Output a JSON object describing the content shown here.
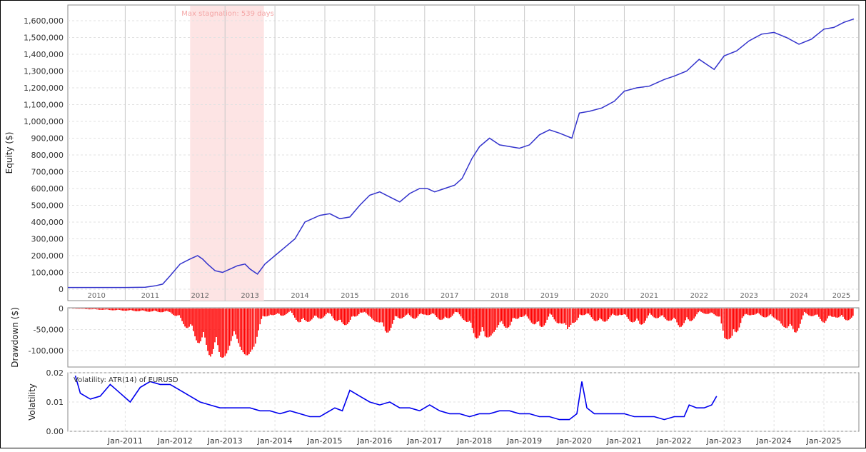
{
  "chart_data": [
    {
      "type": "line",
      "ylabel": "Equity ($)",
      "ylim": [
        0,
        1650000
      ],
      "yticks": [
        0,
        100000,
        200000,
        300000,
        400000,
        500000,
        600000,
        700000,
        800000,
        900000,
        1000000,
        1100000,
        1200000,
        1300000,
        1400000,
        1500000,
        1600000
      ],
      "ytick_labels": [
        "0",
        "100,000",
        "200,000",
        "300,000",
        "400,000",
        "500,000",
        "600,000",
        "700,000",
        "800,000",
        "900,000",
        "1,000,000",
        "1,100,000",
        "1,200,000",
        "1,300,000",
        "1,400,000",
        "1,500,000",
        "1,600,000"
      ],
      "year_labels": [
        "2010",
        "2011",
        "2012",
        "2013",
        "2014",
        "2015",
        "2016",
        "2017",
        "2018",
        "2019",
        "2020",
        "2021",
        "2022",
        "2023",
        "2024",
        "2025"
      ],
      "grid": true,
      "color": "#3333cc",
      "annotation": {
        "text": "Max stagnation: 539 days",
        "start": 2012.3,
        "end": 2013.78,
        "color": "#fde4e4"
      },
      "series": [
        {
          "x": [
            2009.85,
            2010.5,
            2011.0,
            2011.4,
            2011.6,
            2011.75,
            2011.9,
            2012.1,
            2012.3,
            2012.45,
            2012.55,
            2012.65,
            2012.8,
            2012.95,
            2013.1,
            2013.25,
            2013.4,
            2013.5,
            2013.65,
            2013.8,
            2014.0,
            2014.2,
            2014.4,
            2014.6,
            2014.9,
            2015.1,
            2015.3,
            2015.5,
            2015.7,
            2015.9,
            2016.1,
            2016.3,
            2016.5,
            2016.7,
            2016.9,
            2017.05,
            2017.2,
            2017.4,
            2017.6,
            2017.75,
            2017.95,
            2018.1,
            2018.3,
            2018.5,
            2018.7,
            2018.9,
            2019.1,
            2019.3,
            2019.5,
            2019.7,
            2019.95,
            2020.1,
            2020.3,
            2020.55,
            2020.8,
            2021.0,
            2021.25,
            2021.5,
            2021.8,
            2022.0,
            2022.25,
            2022.5,
            2022.8,
            2023.0,
            2023.25,
            2023.5,
            2023.75,
            2024.0,
            2024.25,
            2024.5,
            2024.75,
            2025.0,
            2025.2,
            2025.4,
            2025.6
          ],
          "y": [
            10000,
            10000,
            10000,
            12000,
            20000,
            30000,
            80000,
            150000,
            180000,
            200000,
            180000,
            150000,
            110000,
            100000,
            120000,
            140000,
            150000,
            120000,
            90000,
            150000,
            200000,
            250000,
            300000,
            400000,
            440000,
            450000,
            420000,
            430000,
            500000,
            560000,
            580000,
            550000,
            520000,
            570000,
            600000,
            600000,
            580000,
            600000,
            620000,
            660000,
            780000,
            850000,
            900000,
            860000,
            850000,
            840000,
            860000,
            920000,
            950000,
            930000,
            900000,
            1050000,
            1060000,
            1080000,
            1120000,
            1180000,
            1200000,
            1210000,
            1250000,
            1270000,
            1300000,
            1370000,
            1310000,
            1390000,
            1420000,
            1480000,
            1520000,
            1530000,
            1500000,
            1460000,
            1490000,
            1550000,
            1560000,
            1590000,
            1610000
          ]
        }
      ]
    },
    {
      "type": "bar",
      "ylabel": "Drawdown ($)",
      "ylim": [
        -125000,
        0
      ],
      "yticks": [
        0,
        -50000,
        -100000
      ],
      "ytick_labels": [
        "0",
        "-50,000",
        "-100,000"
      ],
      "grid": true,
      "color": "#ff0000",
      "series": [
        {
          "x": [
            2009.85,
            2011.9,
            2012.1,
            2012.3,
            2012.5,
            2012.7,
            2012.9,
            2013.05,
            2013.2,
            2013.35,
            2013.5,
            2013.6,
            2013.75,
            2013.9,
            2014.1,
            2014.3,
            2014.5,
            2014.7,
            2014.9,
            2015.1,
            2015.3,
            2015.5,
            2015.7,
            2015.9,
            2016.05,
            2016.2,
            2016.4,
            2016.6,
            2016.8,
            2017.0,
            2017.2,
            2017.4,
            2017.6,
            2017.8,
            2018.0,
            2018.2,
            2018.35,
            2018.5,
            2018.7,
            2018.9,
            2019.1,
            2019.3,
            2019.5,
            2019.7,
            2019.85,
            2019.95,
            2020.1,
            2020.3,
            2020.5,
            2020.7,
            2020.9,
            2021.1,
            2021.3,
            2021.5,
            2021.7,
            2021.9,
            2022.1,
            2022.3,
            2022.5,
            2022.7,
            2022.9,
            2023.0,
            2023.15,
            2023.35,
            2023.55,
            2023.75,
            2023.95,
            2024.1,
            2024.25,
            2024.4,
            2024.6,
            2024.8,
            2025.0,
            2025.2,
            2025.4,
            2025.6
          ],
          "y": [
            0,
            -10000,
            -30000,
            -60000,
            -90000,
            -115000,
            -120000,
            -110000,
            -95000,
            -105000,
            -123000,
            -90000,
            -30000,
            -15000,
            -20000,
            -10000,
            -40000,
            -30000,
            -25000,
            -15000,
            -45000,
            -35000,
            -10000,
            -20000,
            -40000,
            -70000,
            -30000,
            -20000,
            -25000,
            -15000,
            -20000,
            -35000,
            -10000,
            -30000,
            -70000,
            -80000,
            -60000,
            -50000,
            -45000,
            -20000,
            -30000,
            -55000,
            -20000,
            -40000,
            -70000,
            -60000,
            -15000,
            -20000,
            -40000,
            -25000,
            -15000,
            -30000,
            -45000,
            -20000,
            -25000,
            -30000,
            -45000,
            -35000,
            -10000,
            -15000,
            -20000,
            -70000,
            -95000,
            -25000,
            -15000,
            -20000,
            -25000,
            -30000,
            -60000,
            -70000,
            -15000,
            -20000,
            -35000,
            -20000,
            -30000,
            -25000
          ]
        }
      ]
    },
    {
      "type": "line",
      "ylabel": "Volatility",
      "title": "Volatility: ATR(14) of EURUSD",
      "ylim": [
        0,
        0.02
      ],
      "yticks": [
        0,
        0.01,
        0.02
      ],
      "ytick_labels": [
        "0.00",
        "0.01",
        "0.02"
      ],
      "x_labels": [
        "Jan-2011",
        "Jan-2012",
        "Jan-2013",
        "Jan-2014",
        "Jan-2015",
        "Jan-2016",
        "Jan-2017",
        "Jan-2018",
        "Jan-2019",
        "Jan-2020",
        "Jan-2021",
        "Jan-2022",
        "Jan-2023",
        "Jan-2024",
        "Jan-2025"
      ],
      "grid": true,
      "color": "#0000ee",
      "series": [
        {
          "x": [
            2010.0,
            2010.1,
            2010.3,
            2010.5,
            2010.7,
            2010.9,
            2011.1,
            2011.3,
            2011.5,
            2011.7,
            2011.9,
            2012.1,
            2012.3,
            2012.5,
            2012.7,
            2012.9,
            2013.1,
            2013.3,
            2013.5,
            2013.7,
            2013.9,
            2014.1,
            2014.3,
            2014.5,
            2014.7,
            2014.9,
            2015.1,
            2015.2,
            2015.35,
            2015.5,
            2015.7,
            2015.9,
            2016.1,
            2016.3,
            2016.5,
            2016.7,
            2016.9,
            2017.1,
            2017.3,
            2017.5,
            2017.7,
            2017.9,
            2018.1,
            2018.3,
            2018.5,
            2018.7,
            2018.9,
            2019.1,
            2019.3,
            2019.5,
            2019.7,
            2019.9,
            2020.05,
            2020.15,
            2020.25,
            2020.4,
            2020.6,
            2020.8,
            2021.0,
            2021.2,
            2021.4,
            2021.6,
            2021.8,
            2022.0,
            2022.2,
            2022.3,
            2022.45,
            2022.6,
            2022.75,
            2022.85
          ],
          "y": [
            0.019,
            0.013,
            0.011,
            0.012,
            0.016,
            0.013,
            0.01,
            0.015,
            0.017,
            0.016,
            0.016,
            0.014,
            0.012,
            0.01,
            0.009,
            0.008,
            0.008,
            0.008,
            0.008,
            0.007,
            0.007,
            0.006,
            0.007,
            0.006,
            0.005,
            0.005,
            0.007,
            0.008,
            0.007,
            0.014,
            0.012,
            0.01,
            0.009,
            0.01,
            0.008,
            0.008,
            0.007,
            0.009,
            0.007,
            0.006,
            0.006,
            0.005,
            0.006,
            0.006,
            0.007,
            0.007,
            0.006,
            0.006,
            0.005,
            0.005,
            0.004,
            0.004,
            0.006,
            0.017,
            0.008,
            0.006,
            0.006,
            0.006,
            0.006,
            0.005,
            0.005,
            0.005,
            0.004,
            0.005,
            0.005,
            0.009,
            0.008,
            0.008,
            0.009,
            0.012
          ]
        }
      ]
    }
  ]
}
